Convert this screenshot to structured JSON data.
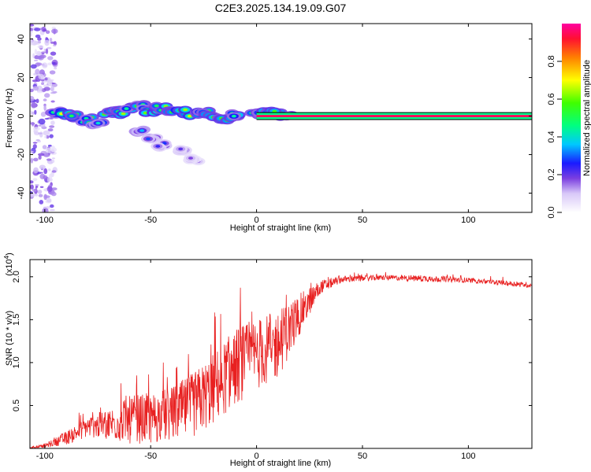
{
  "title": "C2E3.2025.134.19.09.G07",
  "chart_data": [
    {
      "type": "heatmap",
      "xlabel": "Height of straight line (km)",
      "ylabel": "Frequency (Hz)",
      "xlim": [
        -107,
        130
      ],
      "ylim": [
        -50,
        48
      ],
      "xticks": [
        -100,
        -50,
        0,
        50,
        100
      ],
      "yticks": [
        -40,
        -20,
        0,
        20,
        40
      ],
      "colorbar": {
        "label": "Normalized spectral amplitude",
        "range": [
          0.0,
          1.0
        ],
        "ticks": [
          0.0,
          0.2,
          0.4,
          0.6,
          0.8
        ],
        "tick_labels": [
          "0.0",
          "0.2",
          "0.4",
          "0.6",
          "0.8"
        ],
        "stops": [
          {
            "v": 0.0,
            "color": "#ffffff"
          },
          {
            "v": 0.1,
            "color": "#d8c8f8"
          },
          {
            "v": 0.18,
            "color": "#7b3fe0"
          },
          {
            "v": 0.26,
            "color": "#1a1aff"
          },
          {
            "v": 0.36,
            "color": "#00c8ff"
          },
          {
            "v": 0.46,
            "color": "#00ff80"
          },
          {
            "v": 0.58,
            "color": "#40ff00"
          },
          {
            "v": 0.7,
            "color": "#ffff00"
          },
          {
            "v": 0.82,
            "color": "#ff8000"
          },
          {
            "v": 0.92,
            "color": "#ff1030"
          },
          {
            "v": 1.0,
            "color": "#ff00a0"
          }
        ]
      },
      "carrier_band": {
        "x_start": 0,
        "x_end": 130,
        "freq": 0,
        "half_width_hz": 1.2,
        "peak": 0.95
      },
      "features": [
        {
          "x": -95,
          "f": 2,
          "amp": 0.55
        },
        {
          "x": -90,
          "f": 1,
          "amp": 0.72
        },
        {
          "x": -85,
          "f": 0,
          "amp": 0.65
        },
        {
          "x": -80,
          "f": -2,
          "amp": 0.6
        },
        {
          "x": -75,
          "f": -4,
          "amp": 0.5
        },
        {
          "x": -70,
          "f": 2,
          "amp": 0.68
        },
        {
          "x": -65,
          "f": 2,
          "amp": 0.7
        },
        {
          "x": -60,
          "f": 4,
          "amp": 0.62
        },
        {
          "x": -55,
          "f": 5,
          "amp": 0.58
        },
        {
          "x": -50,
          "f": 3,
          "amp": 0.66
        },
        {
          "x": -45,
          "f": 4,
          "amp": 0.7
        },
        {
          "x": -40,
          "f": 3,
          "amp": 0.64
        },
        {
          "x": -35,
          "f": 2,
          "amp": 0.74
        },
        {
          "x": -30,
          "f": 1,
          "amp": 0.68
        },
        {
          "x": -25,
          "f": 2,
          "amp": 0.6
        },
        {
          "x": -20,
          "f": 0,
          "amp": 0.66
        },
        {
          "x": -15,
          "f": -1,
          "amp": 0.58
        },
        {
          "x": -10,
          "f": 0,
          "amp": 0.62
        },
        {
          "x": 0,
          "f": 1,
          "amp": 0.55
        },
        {
          "x": 5,
          "f": 2,
          "amp": 0.62
        },
        {
          "x": 10,
          "f": 1,
          "amp": 0.66
        },
        {
          "x": 15,
          "f": 1,
          "amp": 0.55
        },
        {
          "x": -55,
          "f": -8,
          "amp": 0.4
        },
        {
          "x": -50,
          "f": -12,
          "amp": 0.32
        },
        {
          "x": -45,
          "f": -15,
          "amp": 0.3
        },
        {
          "x": -35,
          "f": -18,
          "amp": 0.25
        },
        {
          "x": -30,
          "f": -22,
          "amp": 0.18
        }
      ],
      "scatter_region": {
        "x_start": -107,
        "x_end": -95,
        "f_min": -50,
        "f_max": 48
      }
    },
    {
      "type": "line",
      "xlabel": "Height of straight line (km)",
      "ylabel": "SNR (10 * v/v)",
      "y_scale_label": "(x10^4)",
      "xlim": [
        -107,
        130
      ],
      "ylim": [
        0.0,
        2.2
      ],
      "xticks": [
        -100,
        -50,
        0,
        50,
        100
      ],
      "yticks": [
        0.5,
        1.0,
        1.5,
        2.0
      ],
      "ytick_labels": [
        "0.5",
        "1.0",
        "1.5",
        "2.0"
      ],
      "series": [
        {
          "name": "SNR",
          "color": "#e82020",
          "envelope": [
            {
              "x": -107,
              "mean": 0.01,
              "noise": 0.01
            },
            {
              "x": -100,
              "mean": 0.03,
              "noise": 0.02
            },
            {
              "x": -90,
              "mean": 0.12,
              "noise": 0.08
            },
            {
              "x": -80,
              "mean": 0.25,
              "noise": 0.12
            },
            {
              "x": -70,
              "mean": 0.28,
              "noise": 0.18
            },
            {
              "x": -60,
              "mean": 0.33,
              "noise": 0.28
            },
            {
              "x": -50,
              "mean": 0.35,
              "noise": 0.3
            },
            {
              "x": -40,
              "mean": 0.4,
              "noise": 0.32
            },
            {
              "x": -30,
              "mean": 0.5,
              "noise": 0.38
            },
            {
              "x": -20,
              "mean": 0.7,
              "noise": 0.42
            },
            {
              "x": -10,
              "mean": 0.95,
              "noise": 0.45
            },
            {
              "x": 0,
              "mean": 1.1,
              "noise": 0.42
            },
            {
              "x": 10,
              "mean": 1.2,
              "noise": 0.4
            },
            {
              "x": 20,
              "mean": 1.55,
              "noise": 0.25
            },
            {
              "x": 30,
              "mean": 1.88,
              "noise": 0.08
            },
            {
              "x": 40,
              "mean": 1.97,
              "noise": 0.04
            },
            {
              "x": 60,
              "mean": 1.99,
              "noise": 0.03
            },
            {
              "x": 80,
              "mean": 1.98,
              "noise": 0.04
            },
            {
              "x": 100,
              "mean": 1.96,
              "noise": 0.03
            },
            {
              "x": 120,
              "mean": 1.92,
              "noise": 0.03
            },
            {
              "x": 130,
              "mean": 1.9,
              "noise": 0.03
            }
          ]
        }
      ]
    }
  ]
}
